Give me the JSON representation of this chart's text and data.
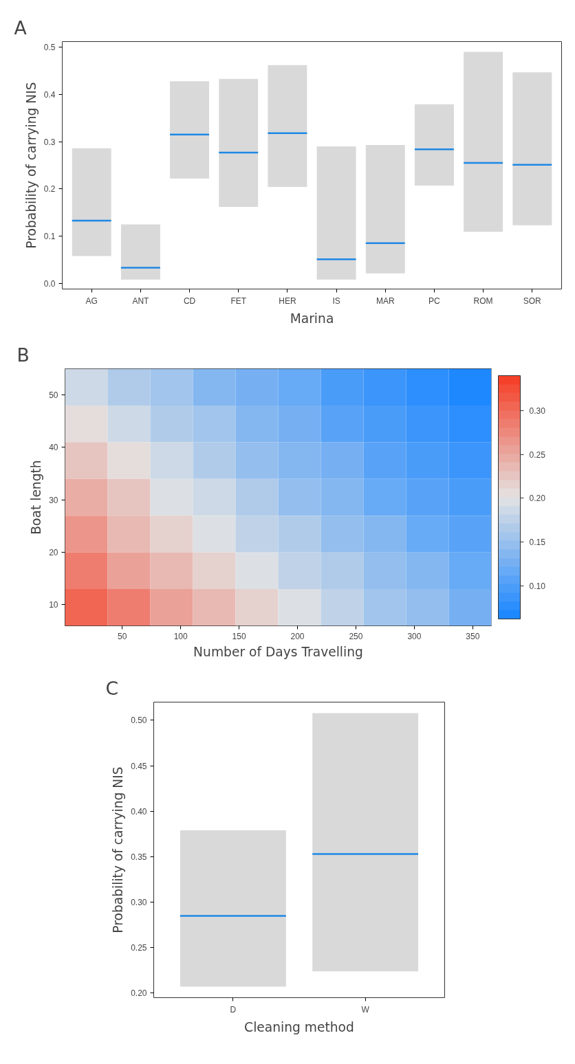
{
  "chart_data": [
    {
      "type": "box",
      "title": "A",
      "xlabel": "Marina",
      "ylabel": "Probability of carrying NIS",
      "categories": [
        "AG",
        "ANT",
        "CD",
        "FET",
        "HER",
        "IS",
        "MAR",
        "PC",
        "ROM",
        "SOR"
      ],
      "series": [
        {
          "color": "#d9d9d9",
          "boxes": [
            {
              "low": 0.058,
              "q1": 0.058,
              "median": 0.133,
              "q3": 0.286,
              "high": 0.286
            },
            {
              "low": 0.008,
              "q1": 0.008,
              "median": 0.033,
              "q3": 0.125,
              "high": 0.125
            },
            {
              "low": 0.222,
              "q1": 0.222,
              "median": 0.315,
              "q3": 0.428,
              "high": 0.428
            },
            {
              "low": 0.162,
              "q1": 0.162,
              "median": 0.277,
              "q3": 0.433,
              "high": 0.433
            },
            {
              "low": 0.204,
              "q1": 0.204,
              "median": 0.318,
              "q3": 0.462,
              "high": 0.462
            },
            {
              "low": 0.008,
              "q1": 0.008,
              "median": 0.051,
              "q3": 0.29,
              "high": 0.29
            },
            {
              "low": 0.021,
              "q1": 0.021,
              "median": 0.085,
              "q3": 0.293,
              "high": 0.293
            },
            {
              "low": 0.207,
              "q1": 0.207,
              "median": 0.284,
              "q3": 0.379,
              "high": 0.379
            },
            {
              "low": 0.109,
              "q1": 0.109,
              "median": 0.255,
              "q3": 0.49,
              "high": 0.49
            },
            {
              "low": 0.123,
              "q1": 0.123,
              "median": 0.251,
              "q3": 0.447,
              "high": 0.447
            }
          ]
        }
      ],
      "ylim": [
        -0.012,
        0.512
      ],
      "yticks": [
        {
          "value": 0,
          "label": "0.0"
        },
        0.1,
        0.2,
        0.3,
        0.4,
        0.5
      ]
    },
    {
      "type": "heatmap",
      "title": "B",
      "xlabel": "Number of Days Travelling",
      "ylabel": "Boat length",
      "x": [
        19.25,
        55.75,
        92.25,
        128.75,
        165.25,
        201.75,
        238.25,
        274.75,
        311.25,
        347.75
      ],
      "y": [
        51.5,
        44.5,
        37.5,
        30.5,
        23.5,
        16.5,
        9.5
      ],
      "cells": [
        [
          0.19,
          0.17,
          0.16,
          0.14,
          0.13,
          0.12,
          0.1,
          0.09,
          0.08,
          0.07
        ],
        [
          0.21,
          0.19,
          0.17,
          0.16,
          0.14,
          0.13,
          0.11,
          0.1,
          0.09,
          0.08
        ],
        [
          0.23,
          0.21,
          0.19,
          0.17,
          0.15,
          0.14,
          0.13,
          0.11,
          0.1,
          0.09
        ],
        [
          0.25,
          0.23,
          0.2,
          0.19,
          0.17,
          0.15,
          0.14,
          0.12,
          0.11,
          0.1
        ],
        [
          0.27,
          0.24,
          0.22,
          0.2,
          0.18,
          0.17,
          0.15,
          0.14,
          0.12,
          0.11
        ],
        [
          0.29,
          0.26,
          0.24,
          0.22,
          0.2,
          0.18,
          0.17,
          0.15,
          0.14,
          0.12
        ],
        [
          0.31,
          0.29,
          0.26,
          0.24,
          0.22,
          0.2,
          0.18,
          0.16,
          0.15,
          0.13
        ]
      ],
      "colors": [
        "#1e88ff",
        "#e3e3e3",
        "#f5412a"
      ],
      "xlim": [
        1,
        366
      ],
      "xticks": [
        50,
        100,
        150,
        200,
        250,
        300,
        350
      ],
      "ylim": [
        6,
        55
      ],
      "yticks": [
        10,
        20,
        30,
        40,
        50
      ],
      "clim": [
        0.062,
        0.34
      ],
      "cticks": [
        {
          "value": 0.1,
          "label": "0.10"
        },
        {
          "value": 0.15,
          "label": "0.15"
        },
        {
          "value": 0.2,
          "label": "0.20"
        },
        {
          "value": 0.25,
          "label": "0.25"
        },
        {
          "value": 0.3,
          "label": "0.30"
        }
      ]
    },
    {
      "type": "box",
      "title": "C",
      "xlabel": "Cleaning method",
      "ylabel": "Probability of carrying NIS",
      "categories": [
        "D",
        "W"
      ],
      "series": [
        {
          "color": "#d9d9d9",
          "boxes": [
            {
              "low": 0.207,
              "q1": 0.207,
              "median": 0.285,
              "q3": 0.379,
              "high": 0.379
            },
            {
              "low": 0.224,
              "q1": 0.224,
              "median": 0.353,
              "q3": 0.508,
              "high": 0.508
            }
          ]
        }
      ],
      "ylim": [
        0.195,
        0.52
      ],
      "yticks": [
        {
          "value": 0.2,
          "label": "0.20"
        },
        {
          "value": 0.25,
          "label": "0.25"
        },
        {
          "value": 0.3,
          "label": "0.30"
        },
        {
          "value": 0.35,
          "label": "0.35"
        },
        {
          "value": 0.4,
          "label": "0.40"
        },
        {
          "value": 0.45,
          "label": "0.45"
        },
        {
          "value": 0.5,
          "label": "0.50"
        }
      ]
    }
  ]
}
